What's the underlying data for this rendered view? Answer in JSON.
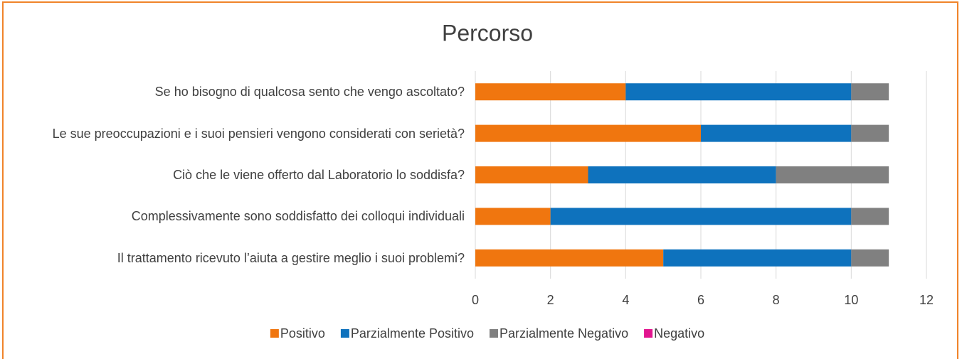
{
  "chart_data": {
    "type": "stacked-barh",
    "title": "Percorso",
    "categories": [
      "Se ho bisogno di qualcosa sento che vengo ascoltato?",
      "Le sue preoccupazioni e i suoi pensieri vengono considerati con serietà?",
      "Ciò che le viene offerto dal Laboratorio lo soddisfa?",
      "Complessivamente sono soddisfatto dei colloqui individuali",
      "Il trattamento ricevuto l’aiuta a gestire meglio i suoi problemi?"
    ],
    "series": [
      {
        "name": "Positivo",
        "color": "#F0760F",
        "values": [
          4,
          6,
          3,
          2,
          5
        ]
      },
      {
        "name": "Parzialmente Positivo",
        "color": "#0E72BD",
        "values": [
          6,
          4,
          5,
          8,
          5
        ]
      },
      {
        "name": "Parzialmente Negativo",
        "color": "#808080",
        "values": [
          1,
          1,
          3,
          1,
          1
        ]
      },
      {
        "name": "Negativo",
        "color": "#E2158F",
        "values": [
          0,
          0,
          0,
          0,
          0
        ]
      }
    ],
    "xlim": [
      0,
      12
    ],
    "xticks": [
      0,
      2,
      4,
      6,
      8,
      10,
      12
    ],
    "grid": true,
    "legend": "bottom"
  }
}
